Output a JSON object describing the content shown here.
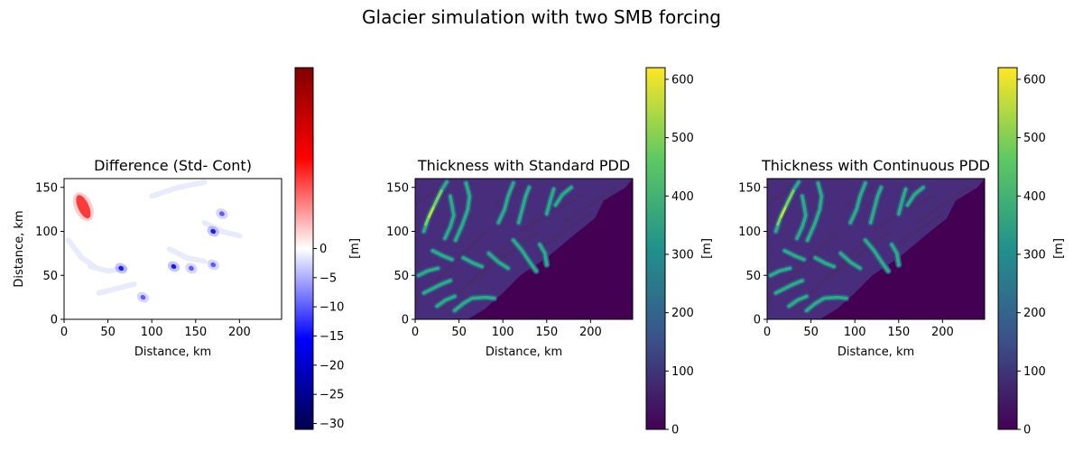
{
  "figure": {
    "suptitle": "Glacier simulation with two SMB forcing"
  },
  "chart_data": [
    {
      "type": "heatmap",
      "title": "Difference (Std- Cont)",
      "xlabel": "Distance, km",
      "ylabel": "Distance, km",
      "xlim": [
        0,
        248
      ],
      "ylim": [
        0,
        160
      ],
      "xticks": [
        0,
        50,
        100,
        150,
        200
      ],
      "yticks": [
        0,
        50,
        100,
        150
      ],
      "colormap": "seismic",
      "colorbar": {
        "label": "[m]",
        "vmin": -31,
        "vmax": 31,
        "ticks": [
          0,
          -5,
          -10,
          -15,
          -20,
          -25,
          -30
        ],
        "colors": [
          "#00004c",
          "#0000ff",
          "#ffffff",
          "#ff0000",
          "#800000"
        ]
      },
      "features": [
        {
          "kind": "positive",
          "x": 22,
          "y": 128,
          "value": 25
        },
        {
          "kind": "negative",
          "x": 65,
          "y": 58,
          "value": -20
        },
        {
          "kind": "negative",
          "x": 125,
          "y": 60,
          "value": -15
        },
        {
          "kind": "negative",
          "x": 145,
          "y": 58,
          "value": -12
        },
        {
          "kind": "negative",
          "x": 170,
          "y": 100,
          "value": -15
        },
        {
          "kind": "negative",
          "x": 180,
          "y": 120,
          "value": -10
        },
        {
          "kind": "negative",
          "x": 90,
          "y": 25,
          "value": -10
        },
        {
          "kind": "negative",
          "x": 170,
          "y": 62,
          "value": -10
        }
      ]
    },
    {
      "type": "heatmap",
      "title": "Thickness with Standard PDD",
      "xlabel": "Distance, km",
      "ylabel": "",
      "xlim": [
        0,
        248
      ],
      "ylim": [
        0,
        160
      ],
      "xticks": [
        0,
        50,
        100,
        150,
        200
      ],
      "yticks": [
        0,
        50,
        100,
        150
      ],
      "colormap": "viridis",
      "colorbar": {
        "label": "[m]",
        "vmin": 0,
        "vmax": 620,
        "ticks": [
          0,
          100,
          200,
          300,
          400,
          500,
          600
        ],
        "colors": [
          "#440154",
          "#3b528b",
          "#21918c",
          "#5ec962",
          "#fde725"
        ]
      }
    },
    {
      "type": "heatmap",
      "title": "Thickness with Continuous PDD",
      "xlabel": "Distance, km",
      "ylabel": "",
      "xlim": [
        0,
        248
      ],
      "ylim": [
        0,
        160
      ],
      "xticks": [
        0,
        50,
        100,
        150,
        200
      ],
      "yticks": [
        0,
        50,
        100,
        150
      ],
      "colormap": "viridis",
      "colorbar": {
        "label": "[m]",
        "vmin": 0,
        "vmax": 620,
        "ticks": [
          0,
          100,
          200,
          300,
          400,
          500,
          600
        ],
        "colors": [
          "#440154",
          "#3b528b",
          "#21918c",
          "#5ec962",
          "#fde725"
        ]
      }
    }
  ]
}
